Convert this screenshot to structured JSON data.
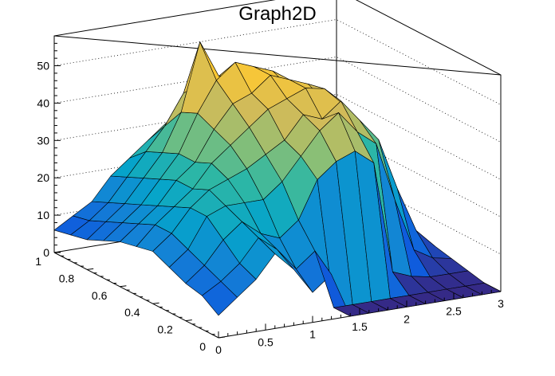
{
  "chart_data": {
    "type": "surface",
    "title": "Graph2D",
    "xlabel": "",
    "ylabel": "",
    "zlabel": "",
    "xlim": [
      0,
      3
    ],
    "ylim": [
      0,
      1
    ],
    "zlim": [
      0,
      58
    ],
    "x_ticks": [
      "0",
      "0.5",
      "1",
      "1.5",
      "2",
      "2.5",
      "3"
    ],
    "y_ticks": [
      "0",
      "0.2",
      "0.4",
      "0.6",
      "0.8",
      "1"
    ],
    "z_ticks": [
      "0",
      "10",
      "20",
      "30",
      "40",
      "50"
    ],
    "z_gridlines": true,
    "palette": [
      "#352a87",
      "#0f5cdd",
      "#1481d6",
      "#06a4ca",
      "#2eb7a4",
      "#87bf77",
      "#d1bb59",
      "#fec832",
      "#f9fb0e"
    ],
    "grid_x": [
      0.0,
      0.2,
      0.4,
      0.6,
      0.8,
      1.0,
      1.2,
      1.4,
      1.6,
      1.8,
      2.0,
      2.2,
      2.4,
      2.6,
      2.8,
      3.0
    ],
    "grid_y": [
      0.0,
      0.1,
      0.2,
      0.3,
      0.4,
      0.5,
      0.6,
      0.7,
      0.8,
      0.9,
      1.0
    ],
    "z": [
      [
        6,
        10,
        14,
        20,
        15,
        8,
        12,
        0,
        0,
        0,
        0,
        0,
        0,
        0,
        0,
        0
      ],
      [
        9,
        12,
        16,
        22,
        18,
        12,
        16,
        0,
        0,
        0,
        0,
        0,
        0,
        0,
        0,
        0
      ],
      [
        10,
        14,
        20,
        24,
        20,
        18,
        22,
        32,
        36,
        38,
        34,
        4,
        2,
        1,
        1,
        1
      ],
      [
        12,
        16,
        24,
        26,
        26,
        26,
        30,
        36,
        42,
        46,
        40,
        36,
        20,
        6,
        3,
        2
      ],
      [
        14,
        18,
        24,
        28,
        30,
        32,
        35,
        38,
        44,
        42,
        46,
        40,
        34,
        20,
        8,
        3
      ],
      [
        13,
        18,
        22,
        26,
        32,
        36,
        40,
        44,
        46,
        48,
        47,
        42,
        36,
        24,
        10,
        4
      ],
      [
        12,
        16,
        20,
        26,
        30,
        38,
        44,
        46,
        50,
        48,
        46,
        40,
        34,
        22,
        8,
        3
      ],
      [
        10,
        14,
        18,
        24,
        30,
        40,
        48,
        52,
        50,
        48,
        42,
        38,
        30,
        18,
        6,
        2
      ],
      [
        8,
        12,
        16,
        22,
        28,
        38,
        56,
        46,
        46,
        42,
        40,
        34,
        24,
        14,
        4,
        1
      ],
      [
        7,
        10,
        14,
        20,
        26,
        32,
        40,
        42,
        40,
        36,
        32,
        26,
        18,
        10,
        3,
        1
      ],
      [
        6,
        9,
        12,
        18,
        22,
        26,
        30,
        32,
        30,
        26,
        22,
        18,
        12,
        6,
        2,
        1
      ]
    ]
  }
}
